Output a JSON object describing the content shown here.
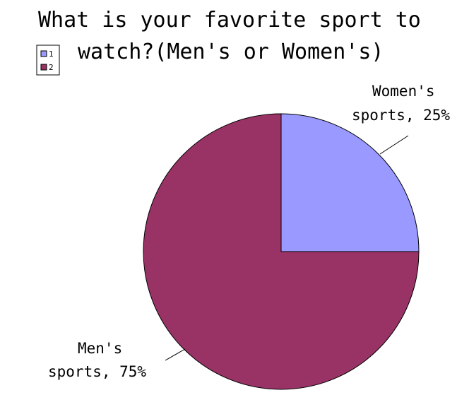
{
  "chart_data": {
    "type": "pie",
    "title_lines": [
      "What is your favorite sport to",
      "watch?(Men's or Women's)"
    ],
    "slices": [
      {
        "legend": "1",
        "label_lines": [
          "Women's",
          "sports, 25%"
        ],
        "value": 25,
        "color": "#9999ff"
      },
      {
        "legend": "2",
        "label_lines": [
          "Men's",
          "sports, 75%"
        ],
        "value": 75,
        "color": "#993366"
      }
    ],
    "legend_position": "top-left",
    "start_angle_deg": 0,
    "direction": "clockwise"
  }
}
